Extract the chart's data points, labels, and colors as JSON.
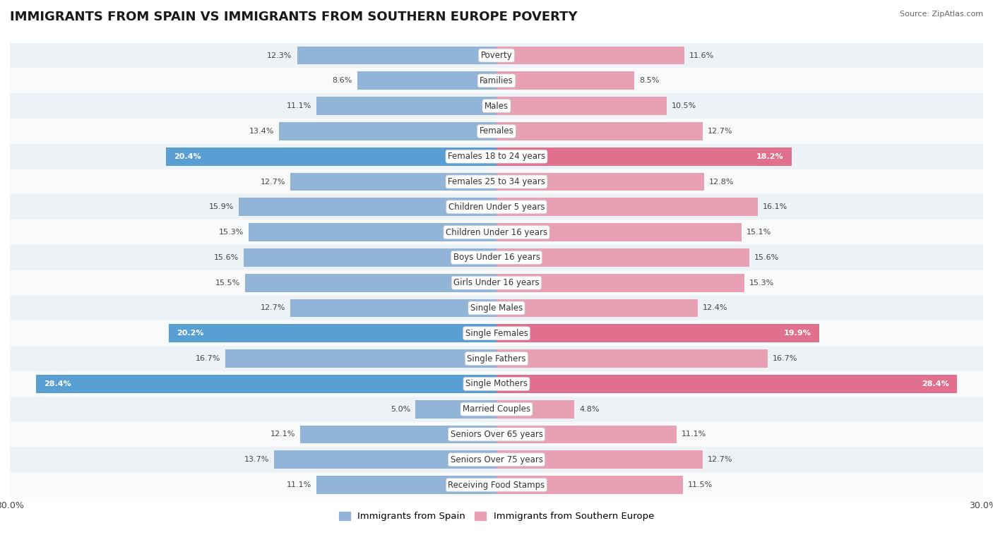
{
  "title": "IMMIGRANTS FROM SPAIN VS IMMIGRANTS FROM SOUTHERN EUROPE POVERTY",
  "source": "Source: ZipAtlas.com",
  "categories": [
    "Poverty",
    "Families",
    "Males",
    "Females",
    "Females 18 to 24 years",
    "Females 25 to 34 years",
    "Children Under 5 years",
    "Children Under 16 years",
    "Boys Under 16 years",
    "Girls Under 16 years",
    "Single Males",
    "Single Females",
    "Single Fathers",
    "Single Mothers",
    "Married Couples",
    "Seniors Over 65 years",
    "Seniors Over 75 years",
    "Receiving Food Stamps"
  ],
  "spain_values": [
    12.3,
    8.6,
    11.1,
    13.4,
    20.4,
    12.7,
    15.9,
    15.3,
    15.6,
    15.5,
    12.7,
    20.2,
    16.7,
    28.4,
    5.0,
    12.1,
    13.7,
    11.1
  ],
  "southern_values": [
    11.6,
    8.5,
    10.5,
    12.7,
    18.2,
    12.8,
    16.1,
    15.1,
    15.6,
    15.3,
    12.4,
    19.9,
    16.7,
    28.4,
    4.8,
    11.1,
    12.7,
    11.5
  ],
  "spain_color": "#91b4d7",
  "southern_color": "#e8a0b4",
  "spain_highlight_color": "#5a9fd4",
  "southern_highlight_color": "#e0708e",
  "highlight_rows": [
    4,
    11,
    13
  ],
  "xlim": 30.0,
  "background_color": "#ffffff",
  "row_alt_color": "#edf2f7",
  "row_color": "#f8fafc",
  "legend_spain": "Immigrants from Spain",
  "legend_southern": "Immigrants from Southern Europe",
  "title_fontsize": 13,
  "label_fontsize": 8.5,
  "value_fontsize": 8.0
}
